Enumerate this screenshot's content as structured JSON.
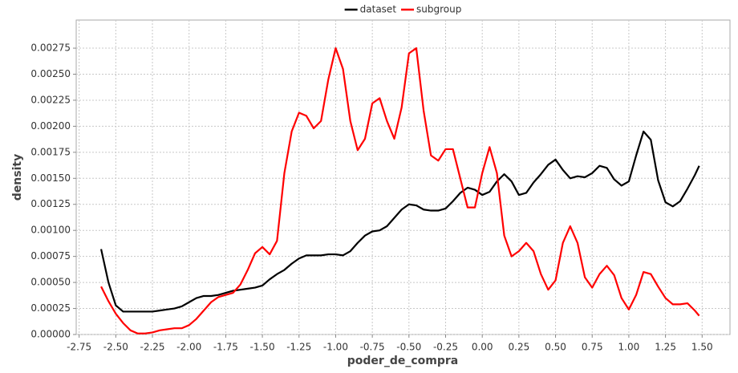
{
  "chart_data": {
    "type": "line",
    "x_label": "poder_de_compra",
    "y_label": "density",
    "xlim": [
      -2.77,
      1.69
    ],
    "ylim": [
      0,
      0.00302
    ],
    "grid": true,
    "legend": "top",
    "xticks": [
      -2.75,
      {
        "value": -2.5,
        "label": "-2.50"
      },
      -2.25,
      {
        "value": -2,
        "label": "-2.00"
      },
      -1.75,
      {
        "value": -1.5,
        "label": "-1.50"
      },
      -1.25,
      {
        "value": -1,
        "label": "-1.00"
      },
      -0.75,
      {
        "value": -0.5,
        "label": "-0.50"
      },
      -0.25,
      {
        "value": 0,
        "label": "0.00"
      },
      0.25,
      {
        "value": 0.5,
        "label": "0.50"
      },
      0.75,
      {
        "value": 1,
        "label": "1.00"
      },
      1.25,
      {
        "value": 1.5,
        "label": "1.50"
      }
    ],
    "yticks": [
      {
        "value": 0,
        "label": "0.00000"
      },
      0.00025,
      {
        "value": 0.0005,
        "label": "0.00050"
      },
      0.00075,
      {
        "value": 0.001,
        "label": "0.00100"
      },
      0.00125,
      {
        "value": 0.0015,
        "label": "0.00150"
      },
      0.00175,
      {
        "value": 0.002,
        "label": "0.00200"
      },
      0.00225,
      {
        "value": 0.0025,
        "label": "0.00250"
      },
      0.00275
    ],
    "x": [
      -2.6,
      -2.55,
      -2.5,
      -2.45,
      -2.4,
      -2.35,
      -2.3,
      -2.25,
      -2.2,
      -2.15,
      -2.1,
      -2.05,
      -2,
      -1.95,
      -1.9,
      -1.85,
      -1.8,
      -1.75,
      -1.7,
      -1.65,
      -1.6,
      -1.55,
      -1.5,
      -1.45,
      -1.4,
      -1.35,
      -1.3,
      -1.25,
      -1.2,
      -1.15,
      -1.1,
      -1.05,
      -1,
      -0.95,
      -0.9,
      -0.85,
      -0.8,
      -0.75,
      -0.7,
      -0.65,
      -0.6,
      -0.55,
      -0.5,
      -0.45,
      -0.4,
      -0.35,
      -0.3,
      -0.25,
      -0.2,
      -0.15,
      -0.1,
      -0.05,
      0,
      0.05,
      0.1,
      0.15,
      0.2,
      0.25,
      0.3,
      0.35,
      0.4,
      0.45,
      0.5,
      0.55,
      0.6,
      0.65,
      0.7,
      0.75,
      0.8,
      0.85,
      0.9,
      0.95,
      1,
      1.05,
      1.1,
      1.15,
      1.2,
      1.25,
      1.3,
      1.35,
      1.4,
      1.45,
      1.48
    ],
    "series": [
      {
        "name": "dataset",
        "color": "#000000",
        "values": [
          0.00082,
          0.0005,
          0.00028,
          0.00022,
          0.00022,
          0.00022,
          0.00022,
          0.00022,
          0.00023,
          0.00024,
          0.00025,
          0.00027,
          0.00031,
          0.00035,
          0.00037,
          0.00037,
          0.00038,
          0.0004,
          0.00042,
          0.00043,
          0.00044,
          0.00045,
          0.00047,
          0.00053,
          0.00058,
          0.00062,
          0.00068,
          0.00073,
          0.00076,
          0.00076,
          0.00076,
          0.00077,
          0.00077,
          0.00076,
          0.0008,
          0.00088,
          0.00095,
          0.00099,
          0.001,
          0.00104,
          0.00112,
          0.0012,
          0.00125,
          0.00124,
          0.0012,
          0.00119,
          0.00119,
          0.00121,
          0.00128,
          0.00136,
          0.00141,
          0.00139,
          0.00134,
          0.00137,
          0.00147,
          0.00154,
          0.00147,
          0.00134,
          0.00136,
          0.00146,
          0.00154,
          0.00163,
          0.00168,
          0.00158,
          0.0015,
          0.00152,
          0.00151,
          0.00155,
          0.00162,
          0.0016,
          0.00149,
          0.00143,
          0.00147,
          0.00172,
          0.00195,
          0.00187,
          0.00148,
          0.00127,
          0.00123,
          0.00128,
          0.0014,
          0.00153,
          0.00162
        ]
      },
      {
        "name": "subgroup",
        "color": "#ff0000",
        "values": [
          0.00046,
          0.00032,
          0.0002,
          0.00011,
          4e-05,
          1e-05,
          1e-05,
          2e-05,
          4e-05,
          5e-05,
          6e-05,
          6e-05,
          9e-05,
          0.00015,
          0.00023,
          0.00031,
          0.00036,
          0.00038,
          0.0004,
          0.00048,
          0.00062,
          0.00078,
          0.00084,
          0.00077,
          0.0009,
          0.00155,
          0.00195,
          0.00213,
          0.0021,
          0.00198,
          0.00205,
          0.00245,
          0.00275,
          0.00255,
          0.00205,
          0.00177,
          0.00188,
          0.00222,
          0.00227,
          0.00205,
          0.00188,
          0.00218,
          0.0027,
          0.00275,
          0.00215,
          0.00172,
          0.00167,
          0.00178,
          0.00178,
          0.0015,
          0.00122,
          0.00122,
          0.00155,
          0.0018,
          0.00155,
          0.00095,
          0.00075,
          0.0008,
          0.00088,
          0.0008,
          0.00058,
          0.00043,
          0.00052,
          0.00088,
          0.00104,
          0.00088,
          0.00055,
          0.00045,
          0.00058,
          0.00066,
          0.00057,
          0.00035,
          0.00024,
          0.00038,
          0.0006,
          0.00058,
          0.00046,
          0.00035,
          0.00029,
          0.00029,
          0.0003,
          0.00023,
          0.00018
        ]
      }
    ]
  }
}
